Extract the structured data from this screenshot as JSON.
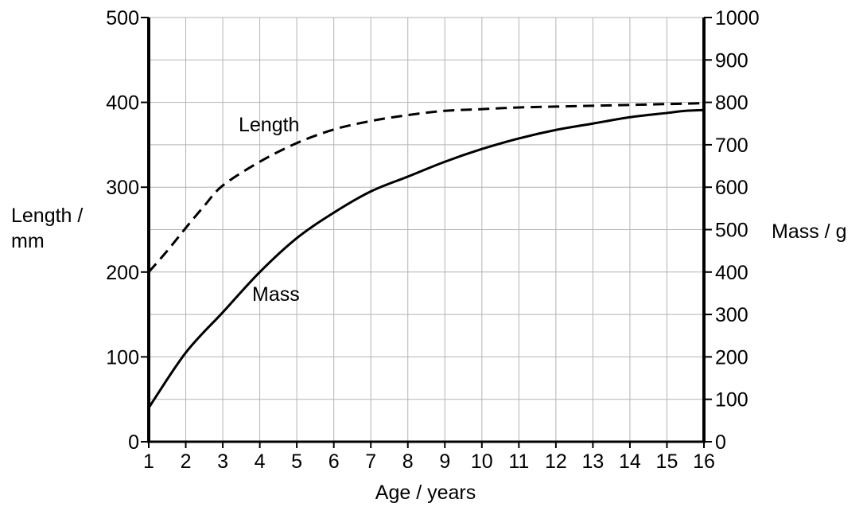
{
  "chart_data": {
    "type": "line",
    "xlabel": "Age / years",
    "ylabel_left": [
      "Length /",
      "mm"
    ],
    "ylabel_right": "Mass / g",
    "x_ticks": [
      1,
      2,
      3,
      4,
      5,
      6,
      7,
      8,
      9,
      10,
      11,
      12,
      13,
      14,
      15,
      16
    ],
    "y_left_ticks": [
      0,
      100,
      200,
      300,
      400,
      500
    ],
    "y_right_ticks": [
      0,
      100,
      200,
      300,
      400,
      500,
      600,
      700,
      800,
      900,
      1000
    ],
    "xlim": [
      1,
      16
    ],
    "ylim_left": [
      0,
      500
    ],
    "ylim_right": [
      0,
      1000
    ],
    "grid": true,
    "series": [
      {
        "name": "Length",
        "axis": "left",
        "style": "dashed",
        "x": [
          1,
          1.5,
          2,
          2.5,
          3,
          4,
          5,
          6,
          7,
          8,
          9,
          10,
          11,
          12,
          13,
          14,
          15,
          16
        ],
        "values": [
          200,
          225,
          252,
          278,
          302,
          330,
          352,
          368,
          378,
          385,
          390,
          392,
          394,
          395,
          396,
          397,
          398,
          399
        ]
      },
      {
        "name": "Mass",
        "axis": "right",
        "style": "solid",
        "x": [
          1,
          2,
          3,
          4,
          5,
          6,
          7,
          8,
          9,
          10,
          11,
          12,
          13,
          14,
          15,
          15.5,
          16
        ],
        "values": [
          80,
          210,
          305,
          400,
          480,
          540,
          590,
          625,
          660,
          690,
          715,
          735,
          750,
          765,
          775,
          780,
          782
        ]
      }
    ]
  }
}
